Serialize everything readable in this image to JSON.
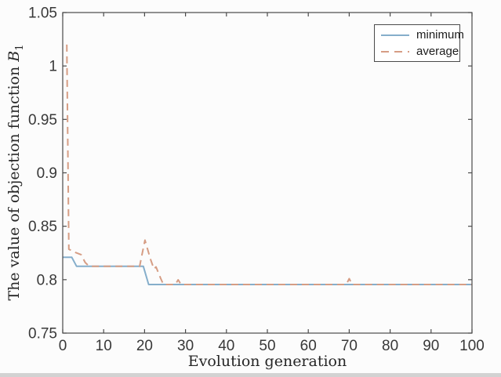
{
  "figure": {
    "background": "#fcfcfc",
    "bottom_strip_color": "#d2d2d2",
    "axis_color": "#4a4a4a",
    "tick_label_color": "#383838",
    "axis_label_color": "#262626"
  },
  "chart_data": {
    "type": "line",
    "title": "",
    "xlabel": "Evolution generation",
    "ylabel_prefix": "The value of objection function ",
    "ylabel_math": "B",
    "ylabel_sub": "1",
    "xlim": [
      0,
      100
    ],
    "ylim": [
      0.75,
      1.05
    ],
    "grid": false,
    "legend_position": "top-right",
    "x_ticks": {
      "values": [
        0,
        10,
        20,
        30,
        40,
        50,
        60,
        70,
        80,
        90,
        100
      ],
      "labels": [
        "0",
        "10",
        "20",
        "30",
        "40",
        "50",
        "60",
        "70",
        "80",
        "90",
        "100"
      ]
    },
    "y_ticks": {
      "values": [
        0.75,
        0.8,
        0.85,
        0.9,
        0.95,
        1,
        1.05
      ],
      "labels": [
        "0.75",
        "0.8",
        "0.85",
        "0.9",
        "0.95",
        "1",
        "1.05"
      ]
    },
    "series": [
      {
        "name": "minimum",
        "style": "solid",
        "color": "#85aecb",
        "width": 2,
        "points": [
          [
            0,
            0.821
          ],
          [
            2.2,
            0.821
          ],
          [
            3.4,
            0.8125
          ],
          [
            19.7,
            0.8125
          ],
          [
            21,
            0.7955
          ],
          [
            100,
            0.7955
          ]
        ]
      },
      {
        "name": "average",
        "style": "dashed",
        "color": "#d69d84",
        "width": 2,
        "points": [
          [
            1,
            1.02
          ],
          [
            1.5,
            0.8285
          ],
          [
            3,
            0.8256
          ],
          [
            4.5,
            0.8234
          ],
          [
            5.5,
            0.816
          ],
          [
            6.5,
            0.8125
          ],
          [
            18.8,
            0.8125
          ],
          [
            19.3,
            0.822
          ],
          [
            20.1,
            0.837
          ],
          [
            21.4,
            0.8197
          ],
          [
            22.3,
            0.81
          ],
          [
            22.8,
            0.812
          ],
          [
            23.9,
            0.8014
          ],
          [
            24.6,
            0.7955
          ],
          [
            27.5,
            0.7955
          ],
          [
            28.2,
            0.7999
          ],
          [
            28.9,
            0.7955
          ],
          [
            69.3,
            0.7955
          ],
          [
            70,
            0.801
          ],
          [
            70.7,
            0.7955
          ],
          [
            100,
            0.7955
          ]
        ]
      }
    ]
  }
}
